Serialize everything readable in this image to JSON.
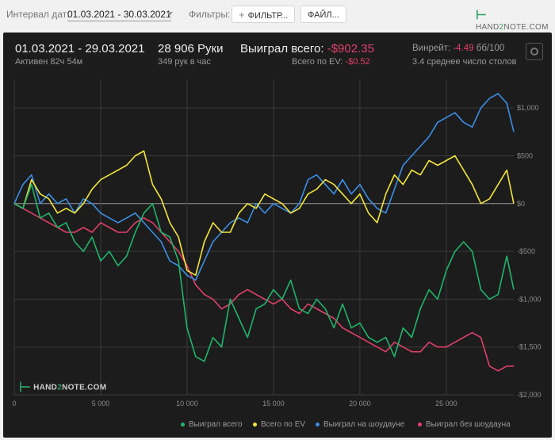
{
  "toolbar": {
    "date_interval_label": "Интервал дат:",
    "date_range_value": "01.03.2021 - 30.03.2021",
    "filters_label": "Фильтры:",
    "filters_button": "ФИЛЬТР...",
    "files_button": "ФАЙЛ...",
    "logo_text_a": "HAND",
    "logo_text_b": "2",
    "logo_text_c": "NOTE.COM"
  },
  "summary": {
    "period": "01.03.2021 - 29.03.2021",
    "active_time": "Активен 82ч 54м",
    "hands": "28 906 Руки",
    "hands_per_hour": "349 рук в час",
    "won_total_label": "Выиграл всего:",
    "won_total_value": "-$902.35",
    "ev_total_label": "Всего по EV:",
    "ev_total_value": "-$0.52",
    "winrate_label": "Винрейт:",
    "winrate_value": "-4.49",
    "winrate_unit": "бб/100",
    "avg_tables": "3.4 среднее число столов"
  },
  "colors": {
    "won_total": "#1fb56a",
    "ev_total": "#f2e53a",
    "showdown": "#3a8ee6",
    "non_showdown": "#e0406a",
    "background": "#1c1c1c",
    "grid": "#3a3a3a",
    "zero_line": "#9a9a9a"
  },
  "chart_data": {
    "type": "line",
    "xlabel": "",
    "ylabel": "",
    "xlim": [
      0,
      28906
    ],
    "ylim": [
      -2000,
      1300
    ],
    "x_ticks": [
      0,
      5000,
      10000,
      15000,
      20000,
      25000
    ],
    "x_tick_labels": [
      "0",
      "5 000",
      "10 000",
      "15 000",
      "20 000",
      "25 000"
    ],
    "y_ticks": [
      1000,
      500,
      0,
      -500,
      -1000,
      -1500,
      -2000
    ],
    "y_tick_labels": [
      "$1,000",
      "$500",
      "$0",
      "-$500",
      "-$1,000",
      "-$1,500",
      "-$2,000"
    ],
    "grid": true,
    "legend_position": "bottom-right",
    "x": [
      0,
      500,
      1000,
      1500,
      2000,
      2500,
      3000,
      3500,
      4000,
      4500,
      5000,
      5500,
      6000,
      6500,
      7000,
      7500,
      8000,
      8500,
      9000,
      9500,
      10000,
      10500,
      11000,
      11500,
      12000,
      12500,
      13000,
      13500,
      14000,
      14500,
      15000,
      15500,
      16000,
      16500,
      17000,
      17500,
      18000,
      18500,
      19000,
      19500,
      20000,
      20500,
      21000,
      21500,
      22000,
      22500,
      23000,
      23500,
      24000,
      24500,
      25000,
      25500,
      26000,
      26500,
      27000,
      27500,
      28000,
      28500,
      28906
    ],
    "series": [
      {
        "name": "Выиграл всего",
        "values": [
          0,
          -50,
          200,
          -150,
          -100,
          -250,
          -200,
          -400,
          -500,
          -350,
          -600,
          -500,
          -650,
          -550,
          -300,
          -100,
          0,
          -300,
          -350,
          -600,
          -1300,
          -1600,
          -1650,
          -1400,
          -1500,
          -1000,
          -1200,
          -1400,
          -1100,
          -1050,
          -900,
          -1000,
          -800,
          -1100,
          -1150,
          -1000,
          -1100,
          -1300,
          -1050,
          -1300,
          -1250,
          -1400,
          -1450,
          -1400,
          -1600,
          -1300,
          -1400,
          -1100,
          -900,
          -1000,
          -700,
          -500,
          -400,
          -500,
          -900,
          -1000,
          -950,
          -550,
          -900
        ]
      },
      {
        "name": "Всего по EV",
        "values": [
          0,
          -50,
          250,
          100,
          50,
          -100,
          -50,
          -100,
          0,
          150,
          250,
          300,
          350,
          400,
          500,
          550,
          200,
          50,
          -200,
          -350,
          -700,
          -750,
          -400,
          -200,
          -300,
          -300,
          -100,
          0,
          -50,
          100,
          50,
          0,
          -100,
          -50,
          100,
          150,
          250,
          200,
          100,
          0,
          100,
          -100,
          -200,
          100,
          300,
          200,
          350,
          300,
          450,
          400,
          450,
          500,
          350,
          200,
          0,
          50,
          200,
          350,
          0
        ]
      },
      {
        "name": "Выиграл на шоудауне",
        "values": [
          0,
          200,
          300,
          0,
          100,
          0,
          50,
          -100,
          50,
          0,
          -100,
          -150,
          -200,
          -150,
          -100,
          -200,
          -300,
          -400,
          -600,
          -650,
          -750,
          -800,
          -600,
          -400,
          -300,
          -200,
          -150,
          -200,
          0,
          -100,
          0,
          -50,
          -100,
          0,
          250,
          300,
          200,
          100,
          250,
          100,
          200,
          50,
          -50,
          -100,
          150,
          400,
          500,
          600,
          700,
          850,
          900,
          950,
          850,
          800,
          1000,
          1100,
          1150,
          1050,
          750
        ]
      },
      {
        "name": "Выиграл без шоудауна",
        "values": [
          0,
          -50,
          -100,
          -150,
          -200,
          -250,
          -300,
          -300,
          -250,
          -300,
          -200,
          -250,
          -300,
          -300,
          -200,
          -150,
          -200,
          -300,
          -400,
          -500,
          -650,
          -850,
          -950,
          -1000,
          -1100,
          -1050,
          -950,
          -900,
          -950,
          -1000,
          -1050,
          -1000,
          -1100,
          -1150,
          -1050,
          -1100,
          -1150,
          -1200,
          -1300,
          -1350,
          -1400,
          -1450,
          -1500,
          -1550,
          -1450,
          -1500,
          -1550,
          -1550,
          -1450,
          -1500,
          -1500,
          -1450,
          -1400,
          -1350,
          -1400,
          -1700,
          -1750,
          -1700,
          -1700
        ]
      }
    ]
  },
  "watermark": {
    "text_a": "HAND",
    "text_b": "2",
    "text_c": "NOTE.COM"
  }
}
